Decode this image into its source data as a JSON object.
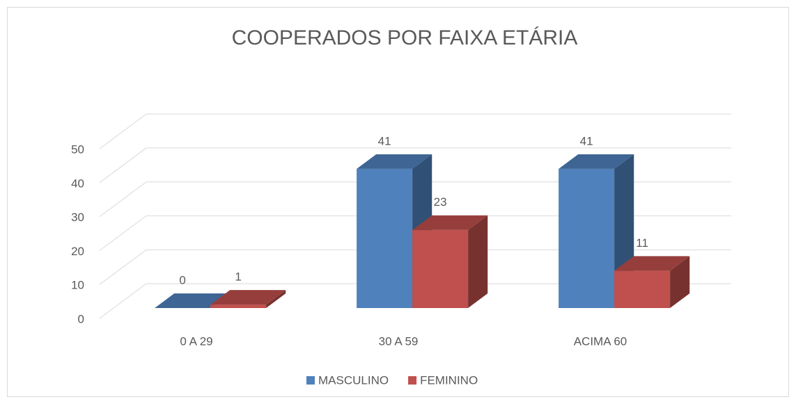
{
  "chart_data": {
    "type": "bar3d",
    "title": "COOPERADOS POR FAIXA ETÁRIA",
    "categories": [
      "0 A 29",
      "30 A 59",
      "ACIMA 60"
    ],
    "series": [
      {
        "name": "MASCULINO",
        "color": "#4f81bd",
        "values": [
          0,
          41,
          41
        ]
      },
      {
        "name": "FEMININO",
        "color": "#c0504d",
        "values": [
          1,
          23,
          11
        ]
      }
    ],
    "ylim": [
      0,
      50
    ],
    "yticks": [
      0,
      10,
      20,
      30,
      40,
      50
    ],
    "grid": true,
    "legend": "bottom"
  }
}
